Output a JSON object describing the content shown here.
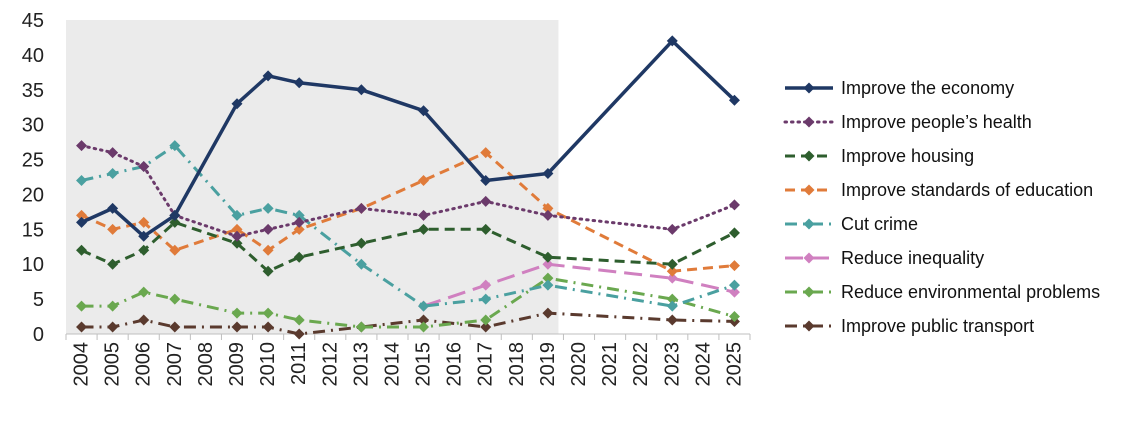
{
  "chart_data": {
    "type": "line",
    "title": "",
    "xlabel": "",
    "ylabel": "",
    "ylim": [
      0,
      45
    ],
    "yticks": [
      "0",
      "5",
      "10",
      "15",
      "20",
      "25",
      "30",
      "35",
      "40",
      "45"
    ],
    "categories": [
      "2004",
      "2005",
      "2006",
      "2007",
      "2008",
      "2009",
      "2010",
      "2011",
      "2012",
      "2013",
      "2014",
      "2015",
      "2016",
      "2017",
      "2018",
      "2019",
      "2020",
      "2021",
      "2022",
      "2023",
      "2024",
      "2025"
    ],
    "shaded_region": [
      "2004",
      "2019"
    ],
    "shaded_color": "#ebebeb",
    "legend_position": "right",
    "grid": false,
    "series": [
      {
        "name": "Improve the economy",
        "color": "#1f3864",
        "style": "solid",
        "values": [
          16,
          18,
          14,
          17,
          null,
          33,
          37,
          36,
          null,
          35,
          null,
          32,
          null,
          22,
          null,
          23,
          null,
          null,
          null,
          42,
          null,
          33.5
        ]
      },
      {
        "name": "Improve people’s health",
        "color": "#6b3a6b",
        "style": "dotted",
        "values": [
          27,
          26,
          24,
          17,
          null,
          14,
          15,
          16,
          null,
          18,
          null,
          17,
          null,
          19,
          null,
          17,
          null,
          null,
          null,
          15,
          null,
          18.5
        ]
      },
      {
        "name": "Improve housing",
        "color": "#2e5e2e",
        "style": "dashed",
        "values": [
          12,
          10,
          12,
          16,
          null,
          13,
          9,
          11,
          null,
          13,
          null,
          15,
          null,
          15,
          null,
          11,
          null,
          null,
          null,
          10,
          null,
          14.5
        ]
      },
      {
        "name": "Improve standards of education",
        "color": "#e07b3a",
        "style": "dashed",
        "values": [
          17,
          15,
          16,
          12,
          null,
          15,
          12,
          15,
          null,
          18,
          null,
          22,
          null,
          26,
          null,
          18,
          null,
          null,
          null,
          9,
          null,
          9.8
        ]
      },
      {
        "name": "Cut crime",
        "color": "#4aa0a0",
        "style": "dashdot",
        "values": [
          22,
          23,
          24,
          27,
          null,
          17,
          18,
          17,
          null,
          10,
          null,
          4,
          null,
          5,
          null,
          7,
          null,
          null,
          null,
          4,
          null,
          7
        ]
      },
      {
        "name": "Reduce inequality",
        "color": "#d080c0",
        "style": "longdash",
        "values": [
          null,
          null,
          null,
          null,
          null,
          null,
          null,
          null,
          null,
          null,
          null,
          4,
          null,
          7,
          null,
          10,
          null,
          null,
          null,
          8,
          null,
          6
        ]
      },
      {
        "name": "Reduce environmental problems",
        "color": "#6aa84f",
        "style": "dashdot",
        "values": [
          4,
          4,
          6,
          5,
          null,
          3,
          3,
          2,
          null,
          1,
          null,
          1,
          null,
          2,
          null,
          8,
          null,
          null,
          null,
          5,
          null,
          2.5
        ]
      },
      {
        "name": "Improve public transport",
        "color": "#5a3a2e",
        "style": "dashdot",
        "values": [
          1,
          1,
          2,
          1,
          null,
          1,
          1,
          0,
          null,
          1,
          null,
          2,
          null,
          1,
          null,
          3,
          null,
          null,
          null,
          2,
          null,
          1.8
        ]
      }
    ]
  }
}
